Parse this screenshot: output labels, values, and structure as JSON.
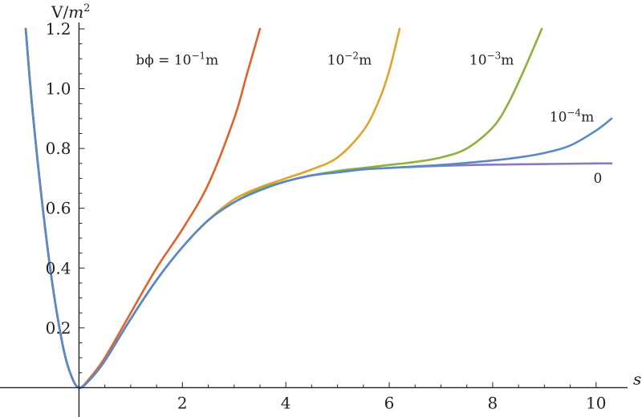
{
  "chart_data": {
    "type": "line",
    "title": "",
    "xlabel": "s",
    "ylabel_main": "V/",
    "ylabel_m": "m",
    "ylabel_exp": "2",
    "xlim": [
      -1.45,
      10.5
    ],
    "ylim": [
      -0.09,
      1.2
    ],
    "xticks": [
      2,
      4,
      6,
      8,
      10
    ],
    "yticks": [
      0.2,
      0.4,
      0.6,
      0.8,
      1.0,
      1.2
    ],
    "ytick_labels": [
      "0.2",
      "0.4",
      "0.6",
      "0.8",
      "1.0",
      "1.2"
    ],
    "legend_prefix": "bϕ = ",
    "series": [
      {
        "name": "10^-1 m",
        "base": "10",
        "exp": "−1",
        "unit": "m",
        "color": "#e0622d",
        "x": [
          -1.03,
          -0.9,
          -0.7,
          -0.5,
          -0.3,
          -0.15,
          0.0,
          0.2,
          0.5,
          1.0,
          1.5,
          2.0,
          2.5,
          3.0,
          3.25,
          3.5
        ],
        "y": [
          1.2,
          0.93,
          0.6,
          0.33,
          0.13,
          0.04,
          0.0,
          0.03,
          0.1,
          0.25,
          0.4,
          0.53,
          0.68,
          0.9,
          1.05,
          1.2
        ]
      },
      {
        "name": "10^-2 m",
        "base": "10",
        "exp": "−2",
        "unit": "m",
        "color": "#e3a32a",
        "x": [
          -1.03,
          -0.9,
          -0.7,
          -0.5,
          -0.3,
          -0.15,
          0.0,
          0.2,
          0.5,
          1.0,
          1.5,
          2.0,
          2.5,
          3.0,
          3.5,
          4.0,
          4.5,
          5.0,
          5.5,
          5.8,
          6.0,
          6.2
        ],
        "y": [
          1.2,
          0.93,
          0.6,
          0.33,
          0.13,
          0.04,
          0.0,
          0.025,
          0.09,
          0.23,
          0.36,
          0.47,
          0.56,
          0.63,
          0.67,
          0.7,
          0.73,
          0.77,
          0.86,
          0.96,
          1.06,
          1.2
        ]
      },
      {
        "name": "10^-3 m",
        "base": "10",
        "exp": "−3",
        "unit": "m",
        "color": "#8db13a",
        "x": [
          -1.03,
          -0.9,
          -0.7,
          -0.5,
          -0.3,
          -0.15,
          0.0,
          0.2,
          0.5,
          1.0,
          1.5,
          2.0,
          2.5,
          3.0,
          3.5,
          4.0,
          4.5,
          5.0,
          5.5,
          6.0,
          6.5,
          7.0,
          7.5,
          8.0,
          8.3,
          8.6,
          8.95
        ],
        "y": [
          1.2,
          0.93,
          0.6,
          0.33,
          0.13,
          0.04,
          0.0,
          0.025,
          0.09,
          0.23,
          0.36,
          0.47,
          0.56,
          0.62,
          0.665,
          0.69,
          0.71,
          0.725,
          0.735,
          0.745,
          0.755,
          0.77,
          0.8,
          0.87,
          0.95,
          1.06,
          1.2
        ]
      },
      {
        "name": "10^-4 m",
        "base": "10",
        "exp": "−4",
        "unit": "m",
        "color": "#5a8ac5",
        "x": [
          -1.03,
          -0.9,
          -0.7,
          -0.5,
          -0.3,
          -0.15,
          0.0,
          0.2,
          0.5,
          1.0,
          1.5,
          2.0,
          2.5,
          3.0,
          3.5,
          4.0,
          4.5,
          5.0,
          5.5,
          6.0,
          6.5,
          7.0,
          7.5,
          8.0,
          8.5,
          9.0,
          9.5,
          10.0,
          10.3
        ],
        "y": [
          1.2,
          0.93,
          0.6,
          0.33,
          0.13,
          0.04,
          0.0,
          0.025,
          0.09,
          0.23,
          0.36,
          0.47,
          0.56,
          0.62,
          0.66,
          0.69,
          0.71,
          0.72,
          0.73,
          0.735,
          0.74,
          0.745,
          0.752,
          0.76,
          0.77,
          0.785,
          0.81,
          0.86,
          0.9
        ]
      },
      {
        "name": "0",
        "base": "0",
        "exp": "",
        "unit": "",
        "color": "#8b78bd",
        "x": [
          -1.03,
          -0.9,
          -0.7,
          -0.5,
          -0.3,
          -0.15,
          0.0,
          0.2,
          0.5,
          1.0,
          1.5,
          2.0,
          2.5,
          3.0,
          3.5,
          4.0,
          4.5,
          5.0,
          5.5,
          6.0,
          7.0,
          8.0,
          9.0,
          10.0,
          10.3
        ],
        "y": [
          1.2,
          0.93,
          0.6,
          0.33,
          0.13,
          0.04,
          0.0,
          0.025,
          0.09,
          0.23,
          0.36,
          0.47,
          0.56,
          0.62,
          0.66,
          0.69,
          0.71,
          0.72,
          0.73,
          0.735,
          0.742,
          0.746,
          0.748,
          0.75,
          0.75
        ]
      }
    ],
    "labels": [
      {
        "series": 0,
        "x": 1.1,
        "y": 1.08,
        "prefix": true
      },
      {
        "series": 1,
        "x": 4.8,
        "y": 1.08,
        "prefix": false
      },
      {
        "series": 2,
        "x": 7.55,
        "y": 1.08,
        "prefix": false
      },
      {
        "series": 3,
        "x": 9.1,
        "y": 0.89,
        "prefix": false
      },
      {
        "series": 4,
        "x": 9.95,
        "y": 0.685,
        "prefix": false
      }
    ],
    "grid": false
  }
}
